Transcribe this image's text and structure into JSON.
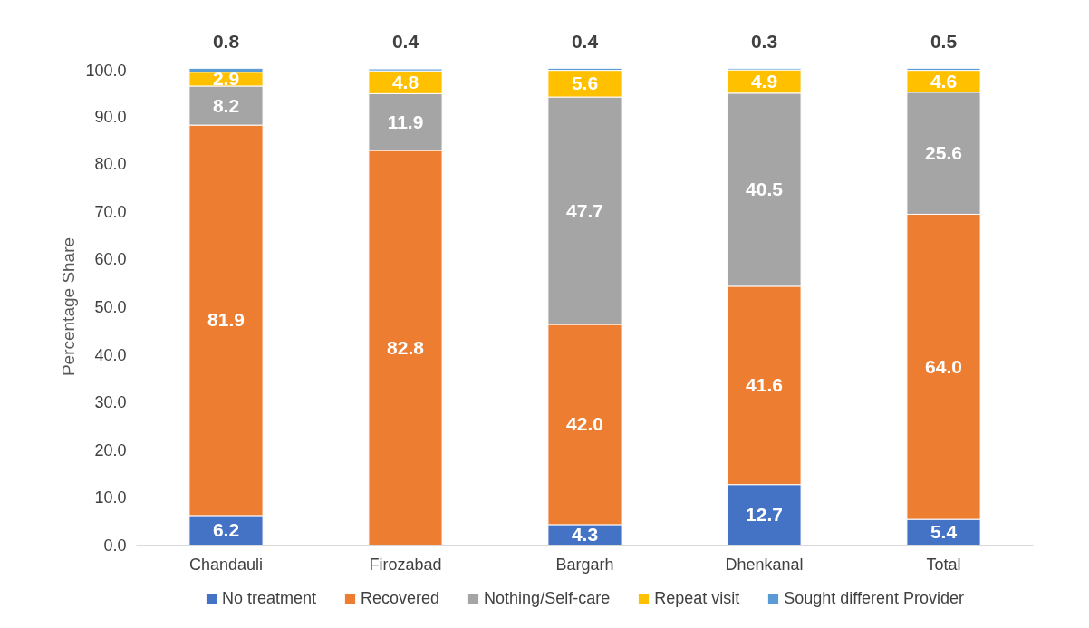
{
  "chart_data": {
    "type": "bar",
    "stacked": true,
    "ylabel": "Percentage Share",
    "categories": [
      "Chandauli",
      "Firozabad",
      "Bargarh",
      "Dhenkanal",
      "Total"
    ],
    "series": [
      {
        "name": "No treatment",
        "color": "#4472c4",
        "values": [
          6.2,
          0,
          4.3,
          12.7,
          5.4
        ],
        "value_labels": [
          "6.2",
          null,
          "4.3",
          "12.7",
          "5.4"
        ]
      },
      {
        "name": "Recovered",
        "color": "#ed7d31",
        "values": [
          81.9,
          82.8,
          42.0,
          41.6,
          64.0
        ],
        "value_labels": [
          "81.9",
          "82.8",
          "42.0",
          "41.6",
          "64.0"
        ]
      },
      {
        "name": "Nothing/Self-care",
        "color": "#a5a5a5",
        "values": [
          8.2,
          11.9,
          47.7,
          40.5,
          25.6
        ],
        "value_labels": [
          "8.2",
          "11.9",
          "47.7",
          "40.5",
          "25.6"
        ]
      },
      {
        "name": "Repeat visit",
        "color": "#ffc000",
        "values": [
          2.9,
          4.8,
          5.6,
          4.9,
          4.6
        ],
        "value_labels": [
          "2.9",
          "4.8",
          "5.6",
          "4.9",
          "4.6"
        ]
      },
      {
        "name": "Sought different Provider",
        "color": "#5b9bd5",
        "values": [
          0.8,
          0.4,
          0.4,
          0.3,
          0.5
        ],
        "value_labels": [
          "0.8",
          "0.4",
          "0.4",
          "0.3",
          "0.5"
        ]
      }
    ],
    "ylim": [
      0,
      100
    ],
    "yticks": [
      {
        "value": 0,
        "label": "0.0"
      },
      {
        "value": 10,
        "label": "10.0"
      },
      {
        "value": 20,
        "label": "20.0"
      },
      {
        "value": 30,
        "label": "30.0"
      },
      {
        "value": 40,
        "label": "40.0"
      },
      {
        "value": 50,
        "label": "50.0"
      },
      {
        "value": 60,
        "label": "60.0"
      },
      {
        "value": 70,
        "label": "70.0"
      },
      {
        "value": 80,
        "label": "80.0"
      },
      {
        "value": 90,
        "label": "90.0"
      },
      {
        "value": 100,
        "label": "100.0"
      }
    ],
    "grid": false,
    "legend": "bottom"
  }
}
